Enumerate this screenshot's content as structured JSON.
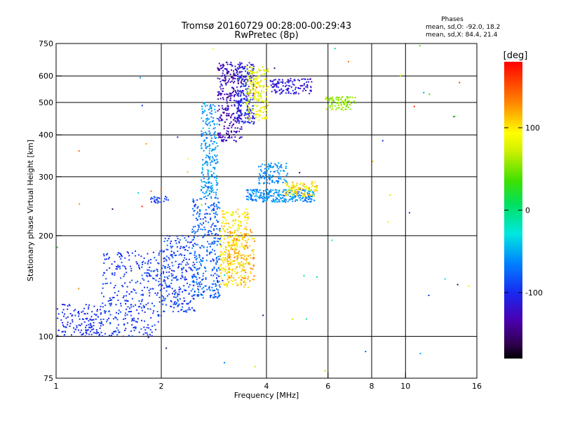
{
  "chart_data": {
    "type": "scatter",
    "title": "Tromsø 20160729 00:28:00-00:29:43",
    "subtitle": "RwPretec (8p)",
    "xlabel": "Frequency [MHz]",
    "ylabel": "Stationary phase Virtual Height [km]",
    "x_scale": "log",
    "y_scale": "log",
    "xlim": [
      1,
      16
    ],
    "ylim": [
      75,
      750
    ],
    "x_ticks": [
      1,
      2,
      4,
      6,
      8,
      10,
      16
    ],
    "x_tick_labels": [
      "1",
      "2",
      "4",
      "6",
      "8",
      "10",
      "16"
    ],
    "y_ticks": [
      75,
      100,
      200,
      300,
      400,
      500,
      600,
      750
    ],
    "y_tick_labels": [
      "75",
      "100",
      "200",
      "300",
      "400",
      "500",
      "600",
      "750"
    ],
    "x_gridlines": [
      2,
      4,
      6,
      8,
      10
    ],
    "y_gridlines": [
      100,
      200,
      300,
      400,
      500,
      600
    ],
    "grid": true,
    "stats": {
      "heading": "Phases",
      "line_o": "mean, sd,O: -92.0, 18.2",
      "line_x": "mean, sd,X:  84.4, 21.4"
    },
    "colorbar": {
      "label": "[deg]",
      "range": [
        -180,
        180
      ],
      "ticks": [
        -100,
        0,
        100
      ],
      "tick_labels": [
        "-100",
        "0",
        "100"
      ]
    },
    "clusters": [
      {
        "f": [
          1.0,
          1.35
        ],
        "h": [
          100,
          125
        ],
        "phase": [
          -105,
          -90
        ],
        "n": 150
      },
      {
        "f": [
          1.35,
          2.0
        ],
        "h": [
          100,
          180
        ],
        "phase": [
          -105,
          -80
        ],
        "n": 330
      },
      {
        "f": [
          2.0,
          2.5
        ],
        "h": [
          118,
          200
        ],
        "phase": [
          -110,
          -70
        ],
        "n": 260
      },
      {
        "f": [
          2.45,
          2.95
        ],
        "h": [
          130,
          260
        ],
        "phase": [
          -100,
          -60
        ],
        "n": 330
      },
      {
        "f": [
          2.6,
          2.9
        ],
        "h": [
          260,
          500
        ],
        "phase": [
          -75,
          -40
        ],
        "n": 230
      },
      {
        "f": [
          2.9,
          3.4
        ],
        "h": [
          380,
          660
        ],
        "phase": [
          -150,
          -110
        ],
        "n": 310
      },
      {
        "f": [
          3.3,
          3.7
        ],
        "h": [
          430,
          660
        ],
        "phase": [
          -120,
          -85
        ],
        "n": 210
      },
      {
        "f": [
          3.5,
          4.05
        ],
        "h": [
          440,
          640
        ],
        "phase": [
          60,
          110
        ],
        "n": 190
      },
      {
        "f": [
          2.95,
          3.55
        ],
        "h": [
          140,
          240
        ],
        "phase": [
          80,
          120
        ],
        "n": 280
      },
      {
        "f": [
          3.1,
          3.7
        ],
        "h": [
          145,
          210
        ],
        "phase": [
          100,
          140
        ],
        "n": 130
      },
      {
        "f": [
          3.5,
          5.5
        ],
        "h": [
          252,
          275
        ],
        "phase": [
          -80,
          -40
        ],
        "n": 260
      },
      {
        "f": [
          4.5,
          5.6
        ],
        "h": [
          262,
          290
        ],
        "phase": [
          70,
          130
        ],
        "n": 100
      },
      {
        "f": [
          3.8,
          4.6
        ],
        "h": [
          285,
          330
        ],
        "phase": [
          -70,
          -50
        ],
        "n": 110
      },
      {
        "f": [
          4.1,
          5.4
        ],
        "h": [
          530,
          590
        ],
        "phase": [
          -130,
          -100
        ],
        "n": 120
      },
      {
        "f": [
          5.9,
          7.2
        ],
        "h": [
          475,
          520
        ],
        "phase": [
          40,
          70
        ],
        "n": 90
      },
      {
        "f": [
          1.85,
          2.1
        ],
        "h": [
          250,
          262
        ],
        "phase": [
          -100,
          -85
        ],
        "n": 25
      },
      {
        "f": [
          1.0,
          16.0
        ],
        "h": [
          75,
          750
        ],
        "phase": [
          -170,
          170
        ],
        "n": 60
      }
    ]
  }
}
